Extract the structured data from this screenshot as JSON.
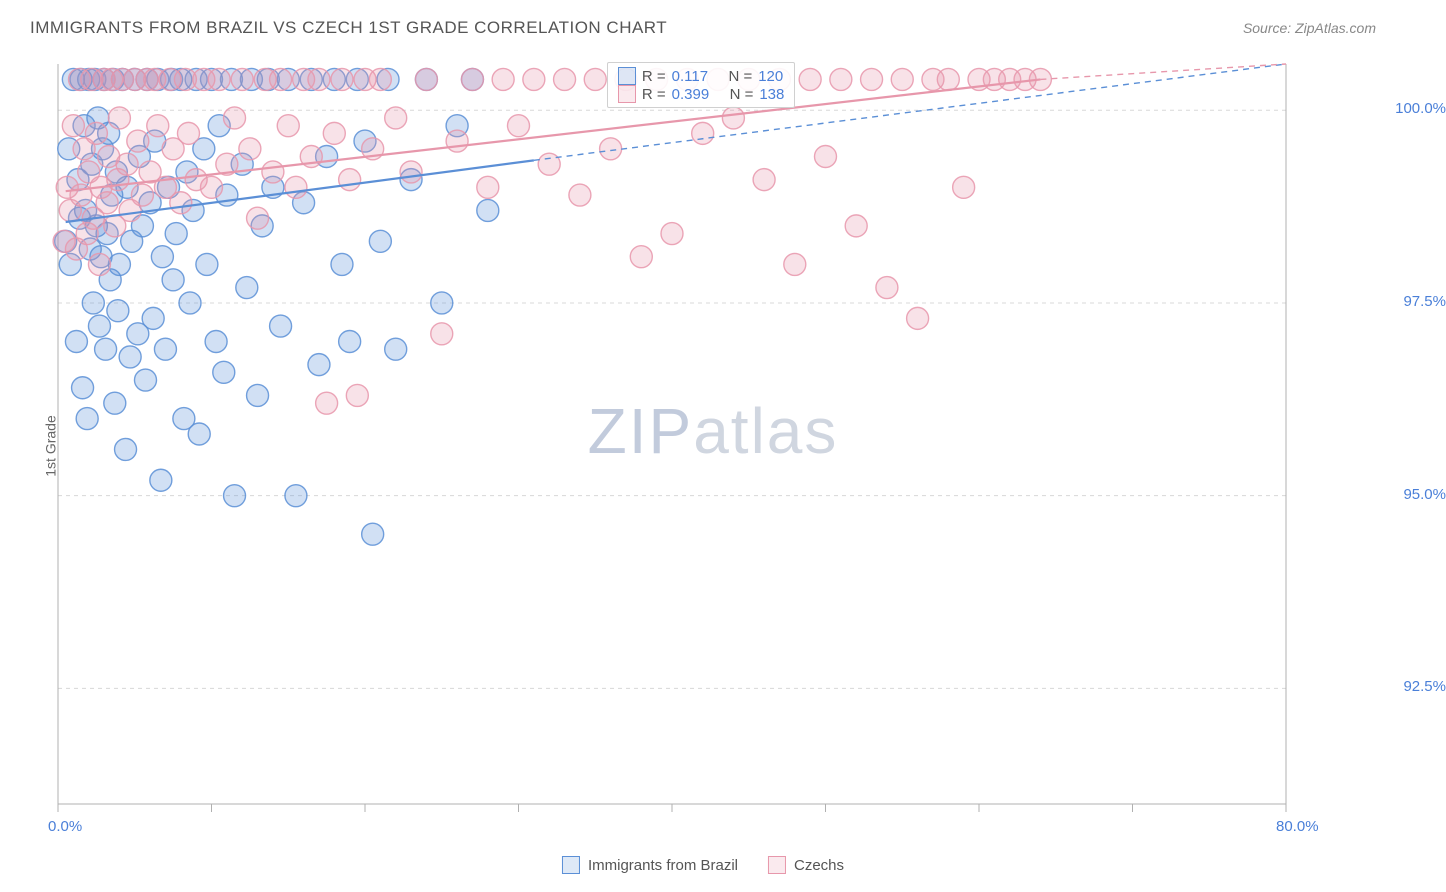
{
  "header": {
    "title": "IMMIGRANTS FROM BRAZIL VS CZECH 1ST GRADE CORRELATION CHART",
    "source": "Source: ZipAtlas.com"
  },
  "chart": {
    "type": "scatter",
    "ylabel": "1st Grade",
    "xlim": [
      0.0,
      80.0
    ],
    "ylim": [
      91.0,
      100.6
    ],
    "xtick_min": 0.0,
    "xtick_max": 80.0,
    "xtick_labels": [
      "0.0%",
      "80.0%"
    ],
    "ytick_values": [
      92.5,
      95.0,
      97.5,
      100.0
    ],
    "ytick_labels": [
      "92.5%",
      "95.0%",
      "97.5%",
      "100.0%"
    ],
    "grid_color": "#d8d8d8",
    "axis_color": "#b0b0b0",
    "background_color": "#ffffff",
    "marker_radius": 11,
    "marker_fill_opacity": 0.28,
    "marker_stroke_opacity": 0.85,
    "marker_stroke_width": 1.4,
    "trend_solid_width": 2.2,
    "trend_dash_pattern": "6,5",
    "trend_dash_width": 1.4,
    "watermark": {
      "zip": "ZIP",
      "atlas": "atlas"
    },
    "series": [
      {
        "key": "brazil",
        "label": "Immigrants from Brazil",
        "color": "#5b8fd6",
        "R": "0.117",
        "N": "120",
        "trend": {
          "x1": 0.5,
          "y1": 98.55,
          "x2": 31,
          "y2": 99.35,
          "x2_extend": 80,
          "y2_extend": 100.6
        },
        "points": [
          [
            0.5,
            98.3
          ],
          [
            0.7,
            99.5
          ],
          [
            0.8,
            98.0
          ],
          [
            1.0,
            100.4
          ],
          [
            1.2,
            97.0
          ],
          [
            1.3,
            99.1
          ],
          [
            1.4,
            98.6
          ],
          [
            1.5,
            100.4
          ],
          [
            1.6,
            96.4
          ],
          [
            1.7,
            99.8
          ],
          [
            1.8,
            98.7
          ],
          [
            1.9,
            96.0
          ],
          [
            2.0,
            100.4
          ],
          [
            2.1,
            98.2
          ],
          [
            2.2,
            99.3
          ],
          [
            2.3,
            97.5
          ],
          [
            2.4,
            100.4
          ],
          [
            2.5,
            98.5
          ],
          [
            2.6,
            99.9
          ],
          [
            2.7,
            97.2
          ],
          [
            2.8,
            98.1
          ],
          [
            2.9,
            99.5
          ],
          [
            3.0,
            100.4
          ],
          [
            3.1,
            96.9
          ],
          [
            3.2,
            98.4
          ],
          [
            3.3,
            99.7
          ],
          [
            3.4,
            97.8
          ],
          [
            3.5,
            98.9
          ],
          [
            3.6,
            100.4
          ],
          [
            3.7,
            96.2
          ],
          [
            3.8,
            99.2
          ],
          [
            3.9,
            97.4
          ],
          [
            4.0,
            98.0
          ],
          [
            4.2,
            100.4
          ],
          [
            4.4,
            95.6
          ],
          [
            4.5,
            99.0
          ],
          [
            4.7,
            96.8
          ],
          [
            4.8,
            98.3
          ],
          [
            5.0,
            100.4
          ],
          [
            5.2,
            97.1
          ],
          [
            5.3,
            99.4
          ],
          [
            5.5,
            98.5
          ],
          [
            5.7,
            96.5
          ],
          [
            5.8,
            100.4
          ],
          [
            6.0,
            98.8
          ],
          [
            6.2,
            97.3
          ],
          [
            6.3,
            99.6
          ],
          [
            6.5,
            100.4
          ],
          [
            6.7,
            95.2
          ],
          [
            6.8,
            98.1
          ],
          [
            7.0,
            96.9
          ],
          [
            7.2,
            99.0
          ],
          [
            7.4,
            100.4
          ],
          [
            7.5,
            97.8
          ],
          [
            7.7,
            98.4
          ],
          [
            8.0,
            100.4
          ],
          [
            8.2,
            96.0
          ],
          [
            8.4,
            99.2
          ],
          [
            8.6,
            97.5
          ],
          [
            8.8,
            98.7
          ],
          [
            9.0,
            100.4
          ],
          [
            9.2,
            95.8
          ],
          [
            9.5,
            99.5
          ],
          [
            9.7,
            98.0
          ],
          [
            10.0,
            100.4
          ],
          [
            10.3,
            97.0
          ],
          [
            10.5,
            99.8
          ],
          [
            10.8,
            96.6
          ],
          [
            11.0,
            98.9
          ],
          [
            11.3,
            100.4
          ],
          [
            11.5,
            95.0
          ],
          [
            12.0,
            99.3
          ],
          [
            12.3,
            97.7
          ],
          [
            12.6,
            100.4
          ],
          [
            13.0,
            96.3
          ],
          [
            13.3,
            98.5
          ],
          [
            13.7,
            100.4
          ],
          [
            14.0,
            99.0
          ],
          [
            14.5,
            97.2
          ],
          [
            15.0,
            100.4
          ],
          [
            15.5,
            95.0
          ],
          [
            16.0,
            98.8
          ],
          [
            16.5,
            100.4
          ],
          [
            17.0,
            96.7
          ],
          [
            17.5,
            99.4
          ],
          [
            18.0,
            100.4
          ],
          [
            18.5,
            98.0
          ],
          [
            19.0,
            97.0
          ],
          [
            19.5,
            100.4
          ],
          [
            20.0,
            99.6
          ],
          [
            20.5,
            94.5
          ],
          [
            21.0,
            98.3
          ],
          [
            21.5,
            100.4
          ],
          [
            22.0,
            96.9
          ],
          [
            23.0,
            99.1
          ],
          [
            24.0,
            100.4
          ],
          [
            25.0,
            97.5
          ],
          [
            26.0,
            99.8
          ],
          [
            27.0,
            100.4
          ],
          [
            28.0,
            98.7
          ]
        ]
      },
      {
        "key": "czech",
        "label": "Czechs",
        "color": "#e797ab",
        "R": "0.399",
        "N": "138",
        "trend": {
          "x1": 0.5,
          "y1": 98.95,
          "x2": 64,
          "y2": 100.4,
          "x2_extend": 80,
          "y2_extend": 100.6
        },
        "points": [
          [
            0.4,
            98.3
          ],
          [
            0.6,
            99.0
          ],
          [
            0.8,
            98.7
          ],
          [
            1.0,
            99.8
          ],
          [
            1.2,
            98.2
          ],
          [
            1.4,
            100.4
          ],
          [
            1.5,
            98.9
          ],
          [
            1.7,
            99.5
          ],
          [
            1.9,
            98.4
          ],
          [
            2.0,
            99.2
          ],
          [
            2.2,
            100.4
          ],
          [
            2.3,
            98.6
          ],
          [
            2.5,
            99.7
          ],
          [
            2.7,
            98.0
          ],
          [
            2.8,
            99.0
          ],
          [
            3.0,
            100.4
          ],
          [
            3.2,
            98.8
          ],
          [
            3.3,
            99.4
          ],
          [
            3.5,
            100.4
          ],
          [
            3.7,
            98.5
          ],
          [
            3.9,
            99.1
          ],
          [
            4.0,
            99.9
          ],
          [
            4.2,
            100.4
          ],
          [
            4.5,
            99.3
          ],
          [
            4.7,
            98.7
          ],
          [
            5.0,
            100.4
          ],
          [
            5.2,
            99.6
          ],
          [
            5.5,
            98.9
          ],
          [
            5.8,
            100.4
          ],
          [
            6.0,
            99.2
          ],
          [
            6.3,
            100.4
          ],
          [
            6.5,
            99.8
          ],
          [
            7.0,
            99.0
          ],
          [
            7.3,
            100.4
          ],
          [
            7.5,
            99.5
          ],
          [
            8.0,
            98.8
          ],
          [
            8.3,
            100.4
          ],
          [
            8.5,
            99.7
          ],
          [
            9.0,
            99.1
          ],
          [
            9.5,
            100.4
          ],
          [
            10.0,
            99.0
          ],
          [
            10.5,
            100.4
          ],
          [
            11.0,
            99.3
          ],
          [
            11.5,
            99.9
          ],
          [
            12.0,
            100.4
          ],
          [
            12.5,
            99.5
          ],
          [
            13.0,
            98.6
          ],
          [
            13.5,
            100.4
          ],
          [
            14.0,
            99.2
          ],
          [
            14.5,
            100.4
          ],
          [
            15.0,
            99.8
          ],
          [
            15.5,
            99.0
          ],
          [
            16.0,
            100.4
          ],
          [
            16.5,
            99.4
          ],
          [
            17.0,
            100.4
          ],
          [
            17.5,
            96.2
          ],
          [
            18.0,
            99.7
          ],
          [
            18.5,
            100.4
          ],
          [
            19.0,
            99.1
          ],
          [
            19.5,
            96.3
          ],
          [
            20.0,
            100.4
          ],
          [
            20.5,
            99.5
          ],
          [
            21.0,
            100.4
          ],
          [
            22.0,
            99.9
          ],
          [
            23.0,
            99.2
          ],
          [
            24.0,
            100.4
          ],
          [
            25.0,
            97.1
          ],
          [
            26.0,
            99.6
          ],
          [
            27.0,
            100.4
          ],
          [
            28.0,
            99.0
          ],
          [
            29.0,
            100.4
          ],
          [
            30.0,
            99.8
          ],
          [
            31.0,
            100.4
          ],
          [
            32.0,
            99.3
          ],
          [
            33.0,
            100.4
          ],
          [
            34.0,
            98.9
          ],
          [
            35.0,
            100.4
          ],
          [
            36.0,
            99.5
          ],
          [
            37.0,
            100.4
          ],
          [
            38.0,
            98.1
          ],
          [
            39.0,
            100.4
          ],
          [
            40.0,
            98.4
          ],
          [
            41.0,
            100.4
          ],
          [
            42.0,
            99.7
          ],
          [
            43.0,
            100.4
          ],
          [
            44.0,
            99.9
          ],
          [
            45.0,
            100.4
          ],
          [
            46.0,
            99.1
          ],
          [
            47.0,
            100.4
          ],
          [
            48.0,
            98.0
          ],
          [
            49.0,
            100.4
          ],
          [
            50.0,
            99.4
          ],
          [
            51.0,
            100.4
          ],
          [
            52.0,
            98.5
          ],
          [
            53.0,
            100.4
          ],
          [
            54.0,
            97.7
          ],
          [
            55.0,
            100.4
          ],
          [
            56.0,
            97.3
          ],
          [
            57.0,
            100.4
          ],
          [
            58.0,
            100.4
          ],
          [
            59.0,
            99.0
          ],
          [
            60.0,
            100.4
          ],
          [
            61.0,
            100.4
          ],
          [
            62.0,
            100.4
          ],
          [
            63.0,
            100.4
          ],
          [
            64.0,
            100.4
          ]
        ]
      }
    ],
    "stats_legend": {
      "r_prefix": "R =",
      "n_prefix": "N ="
    },
    "bottom_legend": true
  }
}
